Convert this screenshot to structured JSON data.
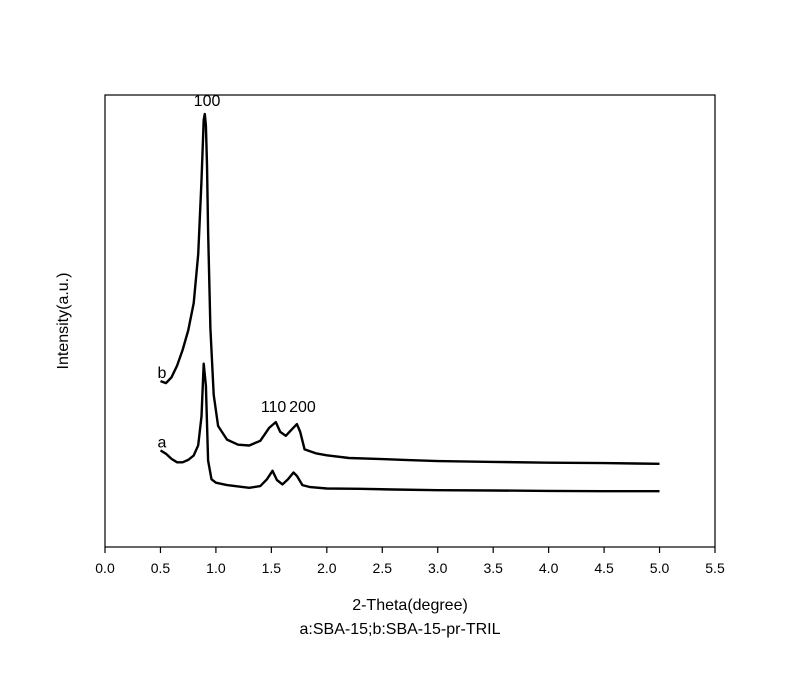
{
  "chart_data": {
    "type": "line",
    "xlabel": "2-Theta(degree)",
    "ylabel": "Intensity(a.u.)",
    "caption": "a:SBA-15;b:SBA-15-pr-TRIL",
    "xlim": [
      0.0,
      5.5
    ],
    "ylim": [
      0,
      100
    ],
    "x_ticks": [
      "0.0",
      "0.5",
      "1.0",
      "1.5",
      "2.0",
      "2.5",
      "3.0",
      "3.5",
      "4.0",
      "4.5",
      "5.0",
      "5.5"
    ],
    "grid": false,
    "series": [
      {
        "name": "a",
        "x": [
          0.5,
          0.55,
          0.6,
          0.65,
          0.7,
          0.75,
          0.8,
          0.84,
          0.87,
          0.89,
          0.91,
          0.93,
          0.96,
          1.0,
          1.1,
          1.2,
          1.3,
          1.4,
          1.46,
          1.51,
          1.55,
          1.6,
          1.65,
          1.7,
          1.73,
          1.78,
          1.85,
          2.0,
          2.3,
          2.6,
          3.0,
          3.5,
          4.0,
          4.5,
          5.0
        ],
        "y": [
          19.0,
          18.0,
          16.5,
          15.5,
          15.5,
          16.2,
          17.5,
          20.5,
          29.0,
          44.5,
          38.0,
          16.0,
          10.5,
          9.5,
          8.8,
          8.4,
          8.0,
          8.5,
          10.5,
          13.0,
          10.3,
          9.0,
          10.5,
          12.5,
          11.5,
          8.8,
          8.2,
          7.8,
          7.7,
          7.5,
          7.3,
          7.2,
          7.1,
          7.0,
          7.0
        ]
      },
      {
        "name": "b",
        "x": [
          0.5,
          0.55,
          0.6,
          0.65,
          0.7,
          0.75,
          0.8,
          0.84,
          0.87,
          0.89,
          0.9,
          0.91,
          0.92,
          0.93,
          0.95,
          0.98,
          1.02,
          1.1,
          1.2,
          1.3,
          1.4,
          1.48,
          1.54,
          1.58,
          1.63,
          1.68,
          1.73,
          1.76,
          1.8,
          1.9,
          2.0,
          2.2,
          2.5,
          2.7,
          3.0,
          3.5,
          4.0,
          4.5,
          5.0
        ],
        "y": [
          31.5,
          31.0,
          32.5,
          35.5,
          39.5,
          44.5,
          51.5,
          64.0,
          83.0,
          98.5,
          100,
          97.0,
          87.0,
          70.0,
          45.0,
          28.0,
          20.0,
          16.5,
          15.2,
          15.0,
          16.2,
          19.5,
          21.0,
          18.5,
          17.5,
          19.0,
          20.5,
          18.5,
          14.0,
          13.0,
          12.5,
          11.8,
          11.5,
          11.3,
          11.0,
          10.8,
          10.6,
          10.5,
          10.3
        ]
      }
    ],
    "annotations": [
      {
        "text": "100",
        "x": 0.92,
        "y": 100
      },
      {
        "text": "110",
        "x": 1.52,
        "y": 21.5
      },
      {
        "text": "200",
        "x": 1.78,
        "y": 21.5
      }
    ]
  }
}
